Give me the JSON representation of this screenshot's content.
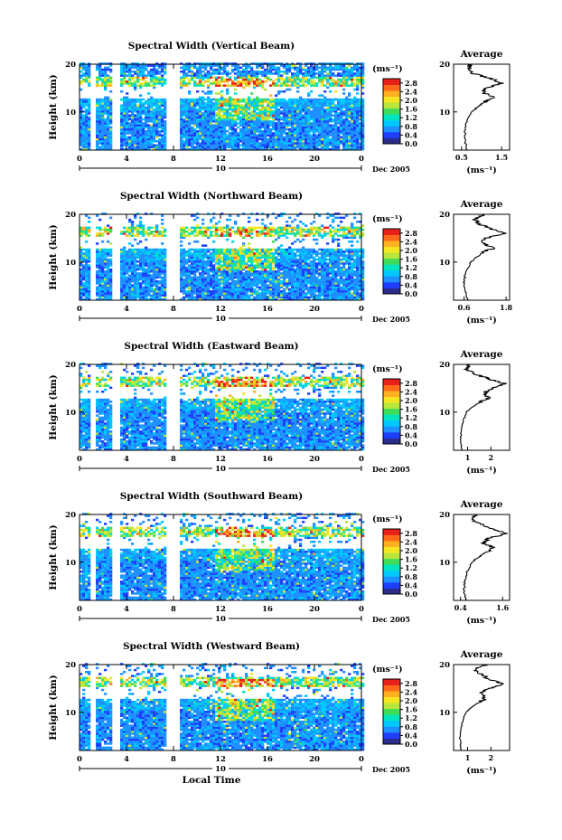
{
  "figure": {
    "xlabel": "Local Time",
    "ylabel": "Height (km)",
    "date_label": "Dec 2005",
    "day_marker": "10",
    "colorbar_unit": "(ms⁻¹)",
    "colorbar_ticks": [
      "2.8",
      "2.4",
      "2.0",
      "1.6",
      "1.2",
      "0.8",
      "0.4",
      "0.0"
    ],
    "colorbar_range": [
      0.0,
      3.0
    ],
    "x_ticks": [
      "0",
      "4",
      "8",
      "12",
      "16",
      "20",
      "0"
    ],
    "y_ticks": [
      "20",
      "10"
    ],
    "colormap": [
      "#2b2b8c",
      "#1f3fff",
      "#1e90ff",
      "#00c8ff",
      "#00e5c0",
      "#3fdc5a",
      "#b8e63c",
      "#f5e623",
      "#ffb020",
      "#ff6a1a",
      "#e8201a"
    ]
  },
  "chart_data": [
    {
      "type": "heatmap",
      "title": "Spectral Width (Vertical Beam)",
      "xlabel": "Local Time",
      "ylabel": "Height (km)",
      "xlim": [
        0,
        24
      ],
      "ylim": [
        2,
        20
      ],
      "gaps_hours": [
        [
          0.8,
          1.3
        ],
        [
          2.6,
          3.4
        ],
        [
          7.3,
          8.4
        ]
      ],
      "avg": {
        "title": "Average",
        "xlabel": "(ms⁻¹)",
        "x_ticks": [
          "0.5",
          "1.5"
        ],
        "xlim": [
          0.3,
          1.7
        ],
        "ylim": [
          2,
          20
        ],
        "profile_height_km": [
          2,
          4,
          6,
          8,
          10,
          11,
          12,
          13,
          14,
          15,
          16,
          17,
          18,
          19,
          20
        ],
        "profile_width": [
          0.62,
          0.58,
          0.58,
          0.62,
          0.75,
          0.9,
          1.05,
          1.3,
          1.05,
          1.1,
          1.5,
          1.25,
          0.8,
          0.72,
          0.7
        ]
      }
    },
    {
      "type": "heatmap",
      "title": "Spectral Width (Northward Beam)",
      "xlabel": "Local Time",
      "ylabel": "Height (km)",
      "xlim": [
        0,
        24
      ],
      "ylim": [
        2,
        20
      ],
      "gaps_hours": [
        [
          0.8,
          1.3
        ],
        [
          2.6,
          3.4
        ],
        [
          7.3,
          8.4
        ]
      ],
      "avg": {
        "title": "Average",
        "xlabel": "(ms⁻¹)",
        "x_ticks": [
          "0.6",
          "1.8"
        ],
        "xlim": [
          0.3,
          1.9
        ],
        "ylim": [
          2,
          20
        ],
        "profile_height_km": [
          2,
          4,
          6,
          8,
          10,
          11,
          12,
          13,
          14,
          15,
          16,
          17,
          18,
          19,
          20
        ],
        "profile_width": [
          0.7,
          0.62,
          0.6,
          0.65,
          0.8,
          0.95,
          1.15,
          1.45,
          1.1,
          1.25,
          1.75,
          1.35,
          1.05,
          0.9,
          1.2
        ]
      }
    },
    {
      "type": "heatmap",
      "title": "Spectral Width (Eastward Beam)",
      "xlabel": "Local Time",
      "ylabel": "Height (km)",
      "xlim": [
        0,
        24
      ],
      "ylim": [
        2,
        20
      ],
      "gaps_hours": [
        [
          0.8,
          1.3
        ],
        [
          2.6,
          3.4
        ],
        [
          7.3,
          8.4
        ]
      ],
      "avg": {
        "title": "Average",
        "xlabel": "(ms⁻¹)",
        "x_ticks": [
          "1",
          "2"
        ],
        "xlim": [
          0.4,
          2.8
        ],
        "ylim": [
          2,
          20
        ],
        "profile_height_km": [
          2,
          4,
          6,
          8,
          10,
          11,
          12,
          13,
          14,
          15,
          16,
          17,
          18,
          19,
          20
        ],
        "profile_width": [
          0.75,
          0.7,
          0.72,
          0.8,
          0.95,
          1.2,
          1.5,
          1.9,
          1.7,
          2.1,
          2.6,
          1.9,
          1.3,
          1.0,
          1.1
        ]
      }
    },
    {
      "type": "heatmap",
      "title": "Spectral Width (Southward Beam)",
      "xlabel": "Local Time",
      "ylabel": "Height (km)",
      "xlim": [
        0,
        24
      ],
      "ylim": [
        2,
        20
      ],
      "gaps_hours": [
        [
          0.8,
          1.3
        ],
        [
          2.6,
          3.4
        ],
        [
          7.3,
          8.4
        ]
      ],
      "avg": {
        "title": "Average",
        "xlabel": "(ms⁻¹)",
        "x_ticks": [
          "0.4",
          "1.6"
        ],
        "xlim": [
          0.2,
          1.8
        ],
        "ylim": [
          2,
          20
        ],
        "profile_height_km": [
          2,
          4,
          6,
          8,
          10,
          11,
          12,
          13,
          14,
          15,
          16,
          17,
          18,
          19,
          20
        ],
        "profile_width": [
          0.55,
          0.5,
          0.52,
          0.58,
          0.72,
          0.9,
          1.1,
          1.35,
          1.05,
          1.2,
          1.7,
          1.3,
          0.95,
          0.75,
          0.8
        ]
      }
    },
    {
      "type": "heatmap",
      "title": "Spectral Width (Westward Beam)",
      "xlabel": "Local Time",
      "ylabel": "Height (km)",
      "xlim": [
        0,
        24
      ],
      "ylim": [
        2,
        20
      ],
      "gaps_hours": [
        [
          0.8,
          1.3
        ],
        [
          2.6,
          3.4
        ],
        [
          7.3,
          8.4
        ]
      ],
      "avg": {
        "title": "Average",
        "xlabel": "(ms⁻¹)",
        "x_ticks": [
          "1",
          "2"
        ],
        "xlim": [
          0.4,
          2.8
        ],
        "ylim": [
          2,
          20
        ],
        "profile_height_km": [
          2,
          4,
          6,
          8,
          10,
          11,
          12,
          13,
          14,
          15,
          16,
          17,
          18,
          19,
          20
        ],
        "profile_width": [
          0.72,
          0.68,
          0.7,
          0.78,
          0.92,
          1.15,
          1.45,
          1.8,
          1.55,
          1.95,
          2.5,
          1.9,
          1.6,
          1.3,
          1.8
        ]
      }
    }
  ]
}
